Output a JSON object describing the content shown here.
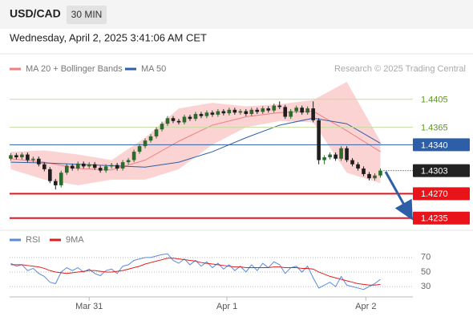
{
  "chart_data": {
    "type": "candlestick",
    "title": "USD/CAD",
    "timeframe": "30 MIN",
    "subtitle": "Wednesday, April 2, 2025 3:41:06 AM CET",
    "source": "Research © 2025 Trading Central",
    "up_color": "#2b6b2b",
    "down_color": "#1e1e1e",
    "xlim": [
      -0.2,
      71.8
    ],
    "xticks": [
      {
        "value": 14,
        "label": "Mar 31"
      },
      {
        "value": 38.6,
        "label": "Apr 1"
      },
      {
        "value": 63.4,
        "label": "Apr 2"
      }
    ],
    "ylim": [
      1.4221,
      1.4438
    ],
    "open": [
      1.432,
      1.4325,
      1.4322,
      1.4326,
      1.4318,
      1.432,
      1.4312,
      1.4305,
      1.4288,
      1.4282,
      1.43,
      1.431,
      1.4306,
      1.4313,
      1.4309,
      1.4312,
      1.4307,
      1.4303,
      1.4309,
      1.4311,
      1.4306,
      1.4315,
      1.4318,
      1.433,
      1.4338,
      1.4346,
      1.4352,
      1.4362,
      1.437,
      1.4378,
      1.4374,
      1.4372,
      1.438,
      1.4377,
      1.4384,
      1.4381,
      1.4386,
      1.4383,
      1.4388,
      1.4385,
      1.439,
      1.4386,
      1.4388,
      1.4384,
      1.439,
      1.4387,
      1.4392,
      1.4389,
      1.4396,
      1.4394,
      1.438,
      1.4388,
      1.4393,
      1.4386,
      1.4392,
      1.4375,
      1.4318,
      1.4322,
      1.4326,
      1.432,
      1.4335,
      1.4318,
      1.4312,
      1.4306,
      1.4298,
      1.4292,
      1.4296
    ],
    "high": [
      1.4328,
      1.4328,
      1.4329,
      1.4329,
      1.4323,
      1.4323,
      1.4315,
      1.4308,
      1.4291,
      1.4303,
      1.4313,
      1.4313,
      1.4316,
      1.4316,
      1.4315,
      1.4315,
      1.431,
      1.4312,
      1.4314,
      1.4314,
      1.4318,
      1.4321,
      1.4333,
      1.4341,
      1.4349,
      1.4355,
      1.4365,
      1.4373,
      1.4381,
      1.4381,
      1.4377,
      1.4383,
      1.4383,
      1.4387,
      1.4387,
      1.4389,
      1.4389,
      1.4391,
      1.4391,
      1.4393,
      1.4393,
      1.4391,
      1.4391,
      1.4393,
      1.4393,
      1.4395,
      1.4395,
      1.4399,
      1.4402,
      1.4397,
      1.4391,
      1.4396,
      1.4396,
      1.4395,
      1.4402,
      1.4378,
      1.4325,
      1.4329,
      1.4329,
      1.4338,
      1.4338,
      1.4321,
      1.4315,
      1.4309,
      1.4301,
      1.4299,
      1.4306
    ],
    "low": [
      1.4317,
      1.4319,
      1.4319,
      1.4315,
      1.4315,
      1.4309,
      1.4302,
      1.4285,
      1.4276,
      1.4279,
      1.4297,
      1.4303,
      1.4303,
      1.4306,
      1.4306,
      1.4304,
      1.43,
      1.43,
      1.4306,
      1.4303,
      1.4303,
      1.4312,
      1.4315,
      1.4327,
      1.4335,
      1.4343,
      1.4349,
      1.4359,
      1.4367,
      1.4371,
      1.4369,
      1.4369,
      1.4374,
      1.4374,
      1.4378,
      1.4378,
      1.438,
      1.438,
      1.4382,
      1.4382,
      1.4383,
      1.4383,
      1.4381,
      1.4381,
      1.4384,
      1.4384,
      1.4386,
      1.4386,
      1.4391,
      1.4377,
      1.4377,
      1.4385,
      1.4383,
      1.4383,
      1.4372,
      1.4312,
      1.4312,
      1.4319,
      1.4317,
      1.4317,
      1.4315,
      1.4309,
      1.4303,
      1.4295,
      1.4289,
      1.4289,
      1.4293
    ],
    "close": [
      1.4325,
      1.4322,
      1.4326,
      1.4318,
      1.432,
      1.4312,
      1.4305,
      1.4288,
      1.4282,
      1.43,
      1.431,
      1.4306,
      1.4313,
      1.4309,
      1.4312,
      1.4307,
      1.4303,
      1.4309,
      1.4311,
      1.4306,
      1.4315,
      1.4318,
      1.433,
      1.4338,
      1.4346,
      1.4352,
      1.4362,
      1.437,
      1.4378,
      1.4374,
      1.4372,
      1.438,
      1.4377,
      1.4384,
      1.4381,
      1.4386,
      1.4383,
      1.4388,
      1.4385,
      1.439,
      1.4386,
      1.4388,
      1.4384,
      1.439,
      1.4387,
      1.4392,
      1.4389,
      1.4396,
      1.4394,
      1.438,
      1.4388,
      1.4393,
      1.4386,
      1.4392,
      1.4375,
      1.4318,
      1.4322,
      1.4326,
      1.432,
      1.4335,
      1.4318,
      1.4312,
      1.4306,
      1.4298,
      1.4292,
      1.4296,
      1.4303
    ],
    "overlays": [
      {
        "name": "MA 20 + Bollinger Bands",
        "color": "#f08080",
        "band_color": "#fbd3d3",
        "x": [
          0,
          6,
          12,
          18,
          24,
          30,
          36,
          42,
          48,
          54,
          60,
          66
        ],
        "values": [
          1.432,
          1.4315,
          1.4306,
          1.4304,
          1.4318,
          1.4345,
          1.4368,
          1.438,
          1.4386,
          1.4388,
          1.436,
          1.433
        ],
        "upper": [
          1.433,
          1.4332,
          1.4326,
          1.4318,
          1.435,
          1.4392,
          1.44,
          1.4395,
          1.4398,
          1.4404,
          1.443,
          1.4345
        ],
        "lower": [
          1.4305,
          1.429,
          1.4282,
          1.429,
          1.429,
          1.4305,
          1.434,
          1.4365,
          1.4374,
          1.4372,
          1.43,
          1.4285
        ]
      },
      {
        "name": "MA 50",
        "color": "#2d5fa8",
        "x": [
          0,
          6,
          12,
          18,
          24,
          30,
          36,
          42,
          48,
          54,
          60,
          66
        ],
        "values": [
          1.4315,
          1.4314,
          1.4312,
          1.431,
          1.4308,
          1.4315,
          1.433,
          1.435,
          1.4368,
          1.4378,
          1.437,
          1.4342
        ]
      }
    ],
    "levels": [
      {
        "value": 1.4405,
        "color": "#c5dca0",
        "text_color": "#5a9a1a",
        "box": false,
        "dotted": false
      },
      {
        "value": 1.4365,
        "color": "#c5dca0",
        "text_color": "#5a9a1a",
        "box": false,
        "dotted": false
      },
      {
        "value": 1.434,
        "label": "1.4340",
        "color": "#2d5fa8",
        "text_color": "#ffffff",
        "box": true,
        "dotted": false
      },
      {
        "value": 1.4303,
        "color": "#222222",
        "text_color": "#ffffff",
        "box": true,
        "dotted": true
      },
      {
        "value": 1.427,
        "label": "1.4270",
        "color": "#e8141a",
        "text_color": "#ffffff",
        "box": true,
        "dotted": false
      },
      {
        "value": 1.4235,
        "color": "#e8141a",
        "text_color": "#ffffff",
        "box": true,
        "dotted": false
      }
    ],
    "indicator": {
      "ylim": [
        18,
        104
      ],
      "yticks": [
        30,
        50,
        70
      ],
      "series": [
        {
          "name": "RSI",
          "color": "#5b8bd9",
          "values": [
            62,
            58,
            60,
            52,
            55,
            48,
            44,
            36,
            34,
            50,
            56,
            52,
            56,
            50,
            54,
            48,
            45,
            52,
            54,
            48,
            58,
            60,
            66,
            68,
            70,
            70,
            72,
            74,
            75,
            66,
            62,
            68,
            60,
            66,
            58,
            64,
            56,
            62,
            54,
            60,
            52,
            58,
            50,
            60,
            52,
            62,
            56,
            64,
            60,
            48,
            56,
            58,
            50,
            58,
            42,
            28,
            32,
            36,
            30,
            44,
            32,
            30,
            28,
            26,
            30,
            34,
            40
          ]
        },
        {
          "name": "9MA",
          "color": "#e02020",
          "values": [
            60,
            60,
            60,
            59,
            58,
            57,
            55,
            52,
            50,
            49,
            48,
            49,
            50,
            51,
            52,
            52,
            51,
            50,
            50,
            51,
            52,
            54,
            56,
            58,
            61,
            63,
            65,
            67,
            69,
            69,
            68,
            67,
            66,
            65,
            63,
            62,
            61,
            60,
            59,
            58,
            57,
            57,
            56,
            56,
            56,
            56,
            56,
            57,
            57,
            56,
            56,
            56,
            55,
            55,
            54,
            50,
            47,
            44,
            42,
            40,
            38,
            36,
            34,
            33,
            32,
            32,
            33
          ]
        }
      ]
    }
  }
}
